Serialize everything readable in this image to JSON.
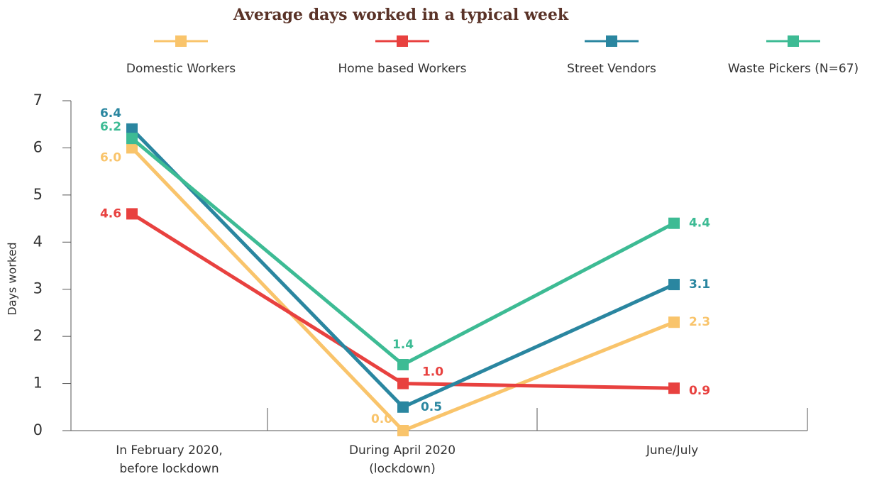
{
  "chart_data": {
    "type": "line",
    "title": "Average days worked in a typical week",
    "y_label": "Days worked",
    "categories": [
      "In February 2020,\nbefore lockdown",
      "During April 2020\n(lockdown)",
      "June/July"
    ],
    "series": [
      {
        "name": "Domestic Workers",
        "color": "#f9c46b",
        "values": [
          6.0,
          0.0,
          2.3
        ],
        "value_labels": [
          "6.0",
          "0.0",
          "2.3"
        ]
      },
      {
        "name": "Home based Workers",
        "color": "#e8413f",
        "values": [
          4.6,
          1.0,
          0.9
        ],
        "value_labels": [
          "4.6",
          "1.0",
          "0.9"
        ]
      },
      {
        "name": "Street Vendors",
        "color": "#2a86a0",
        "values": [
          6.4,
          0.5,
          3.1
        ],
        "value_labels": [
          "6.4",
          "0.5",
          "3.1"
        ]
      },
      {
        "name": "Waste Pickers (N=67)",
        "color": "#3dbb94",
        "values": [
          6.2,
          1.4,
          4.4
        ],
        "value_labels": [
          "6.2",
          "1.4",
          "4.4"
        ]
      }
    ],
    "ylim": [
      0,
      7
    ],
    "yticks": [
      0,
      1,
      2,
      3,
      4,
      5,
      6,
      7
    ]
  }
}
